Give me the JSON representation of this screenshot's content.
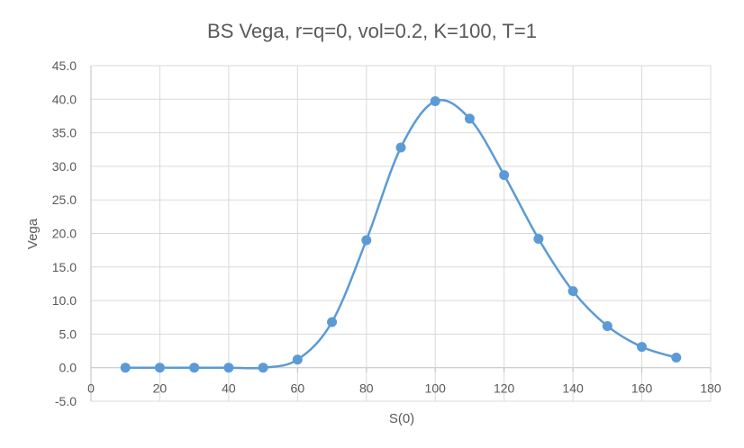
{
  "chart_data": {
    "type": "scatter",
    "title": "BS Vega, r=q=0, vol=0.2, K=100, T=1",
    "xlabel": "S(0)",
    "ylabel": "Vega",
    "xlim": [
      0,
      180
    ],
    "ylim": [
      -5,
      45
    ],
    "x_ticks": [
      "0",
      "20",
      "40",
      "60",
      "80",
      "100",
      "120",
      "140",
      "160",
      "180"
    ],
    "y_ticks": [
      "-5.0",
      "0.0",
      "5.0",
      "10.0",
      "15.0",
      "20.0",
      "25.0",
      "30.0",
      "35.0",
      "40.0",
      "45.0"
    ],
    "x_tick_values": [
      0,
      20,
      40,
      60,
      80,
      100,
      120,
      140,
      160,
      180
    ],
    "y_tick_values": [
      -5,
      0,
      5,
      10,
      15,
      20,
      25,
      30,
      35,
      40,
      45
    ],
    "grid": true,
    "smooth_line": true,
    "series": [
      {
        "x": [
          10,
          20,
          30,
          40,
          50,
          60,
          70,
          80,
          90,
          100,
          110,
          120,
          130,
          140,
          150,
          160,
          170
        ],
        "y": [
          0.0,
          0.0,
          0.0,
          0.0,
          0.0,
          1.2,
          6.8,
          19.0,
          32.8,
          39.7,
          37.1,
          28.7,
          19.2,
          11.4,
          6.2,
          3.1,
          1.5
        ],
        "color": "#5b9bd5"
      }
    ]
  }
}
